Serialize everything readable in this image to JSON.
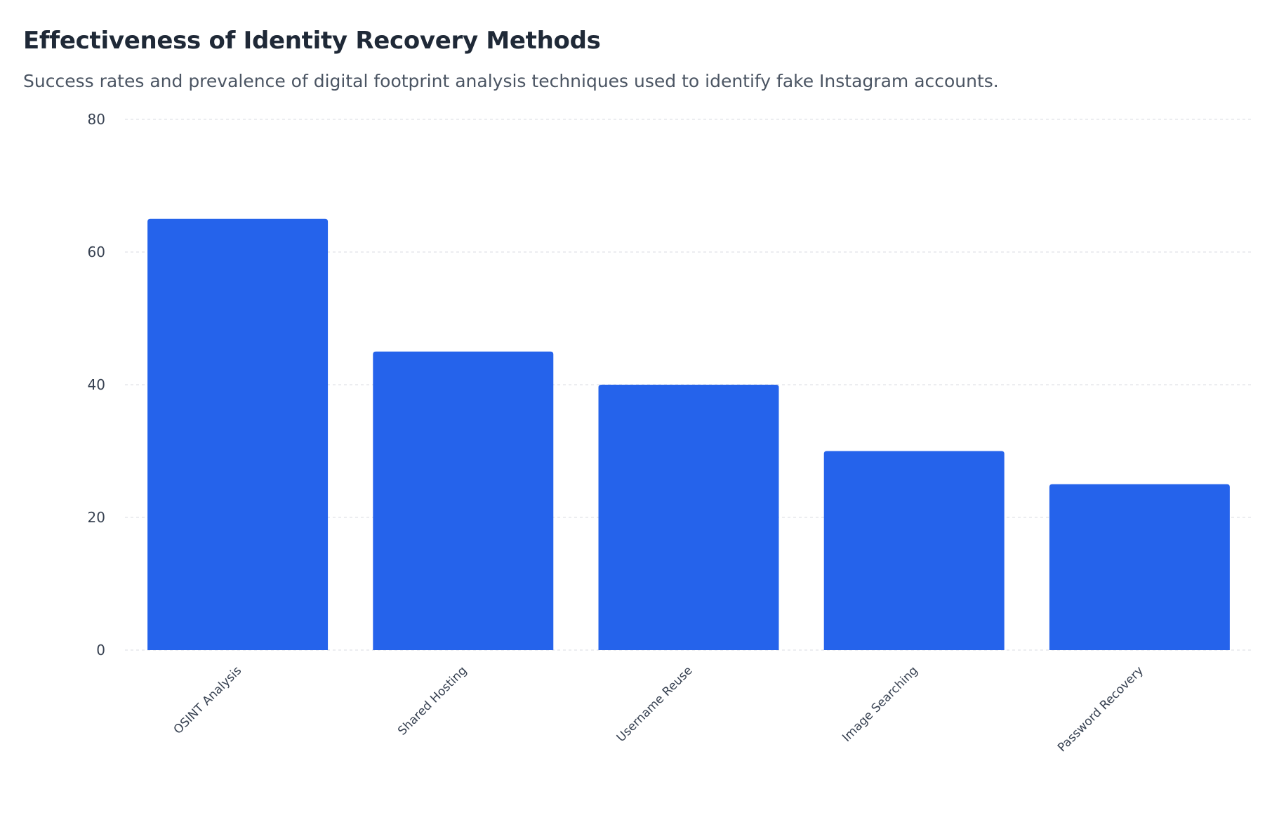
{
  "header": {
    "title": "Effectiveness of Identity Recovery Methods",
    "subtitle": "Success rates and prevalence of digital footprint analysis techniques used to identify fake Instagram accounts."
  },
  "chart_data": {
    "type": "bar",
    "title": "Effectiveness of Identity Recovery Methods",
    "subtitle": "Success rates and prevalence of digital footprint analysis techniques used to identify fake Instagram accounts.",
    "categories": [
      "OSINT Analysis",
      "Shared Hosting",
      "Username Reuse",
      "Image Searching",
      "Password Recovery"
    ],
    "values": [
      65,
      45,
      40,
      30,
      25
    ],
    "xlabel": "",
    "ylabel": "",
    "ylim": [
      0,
      80
    ],
    "yticks": [
      0,
      20,
      40,
      60,
      80
    ],
    "grid": true,
    "legend": "none",
    "bar_color": "#2563eb",
    "grid_color": "#e5e7eb"
  }
}
